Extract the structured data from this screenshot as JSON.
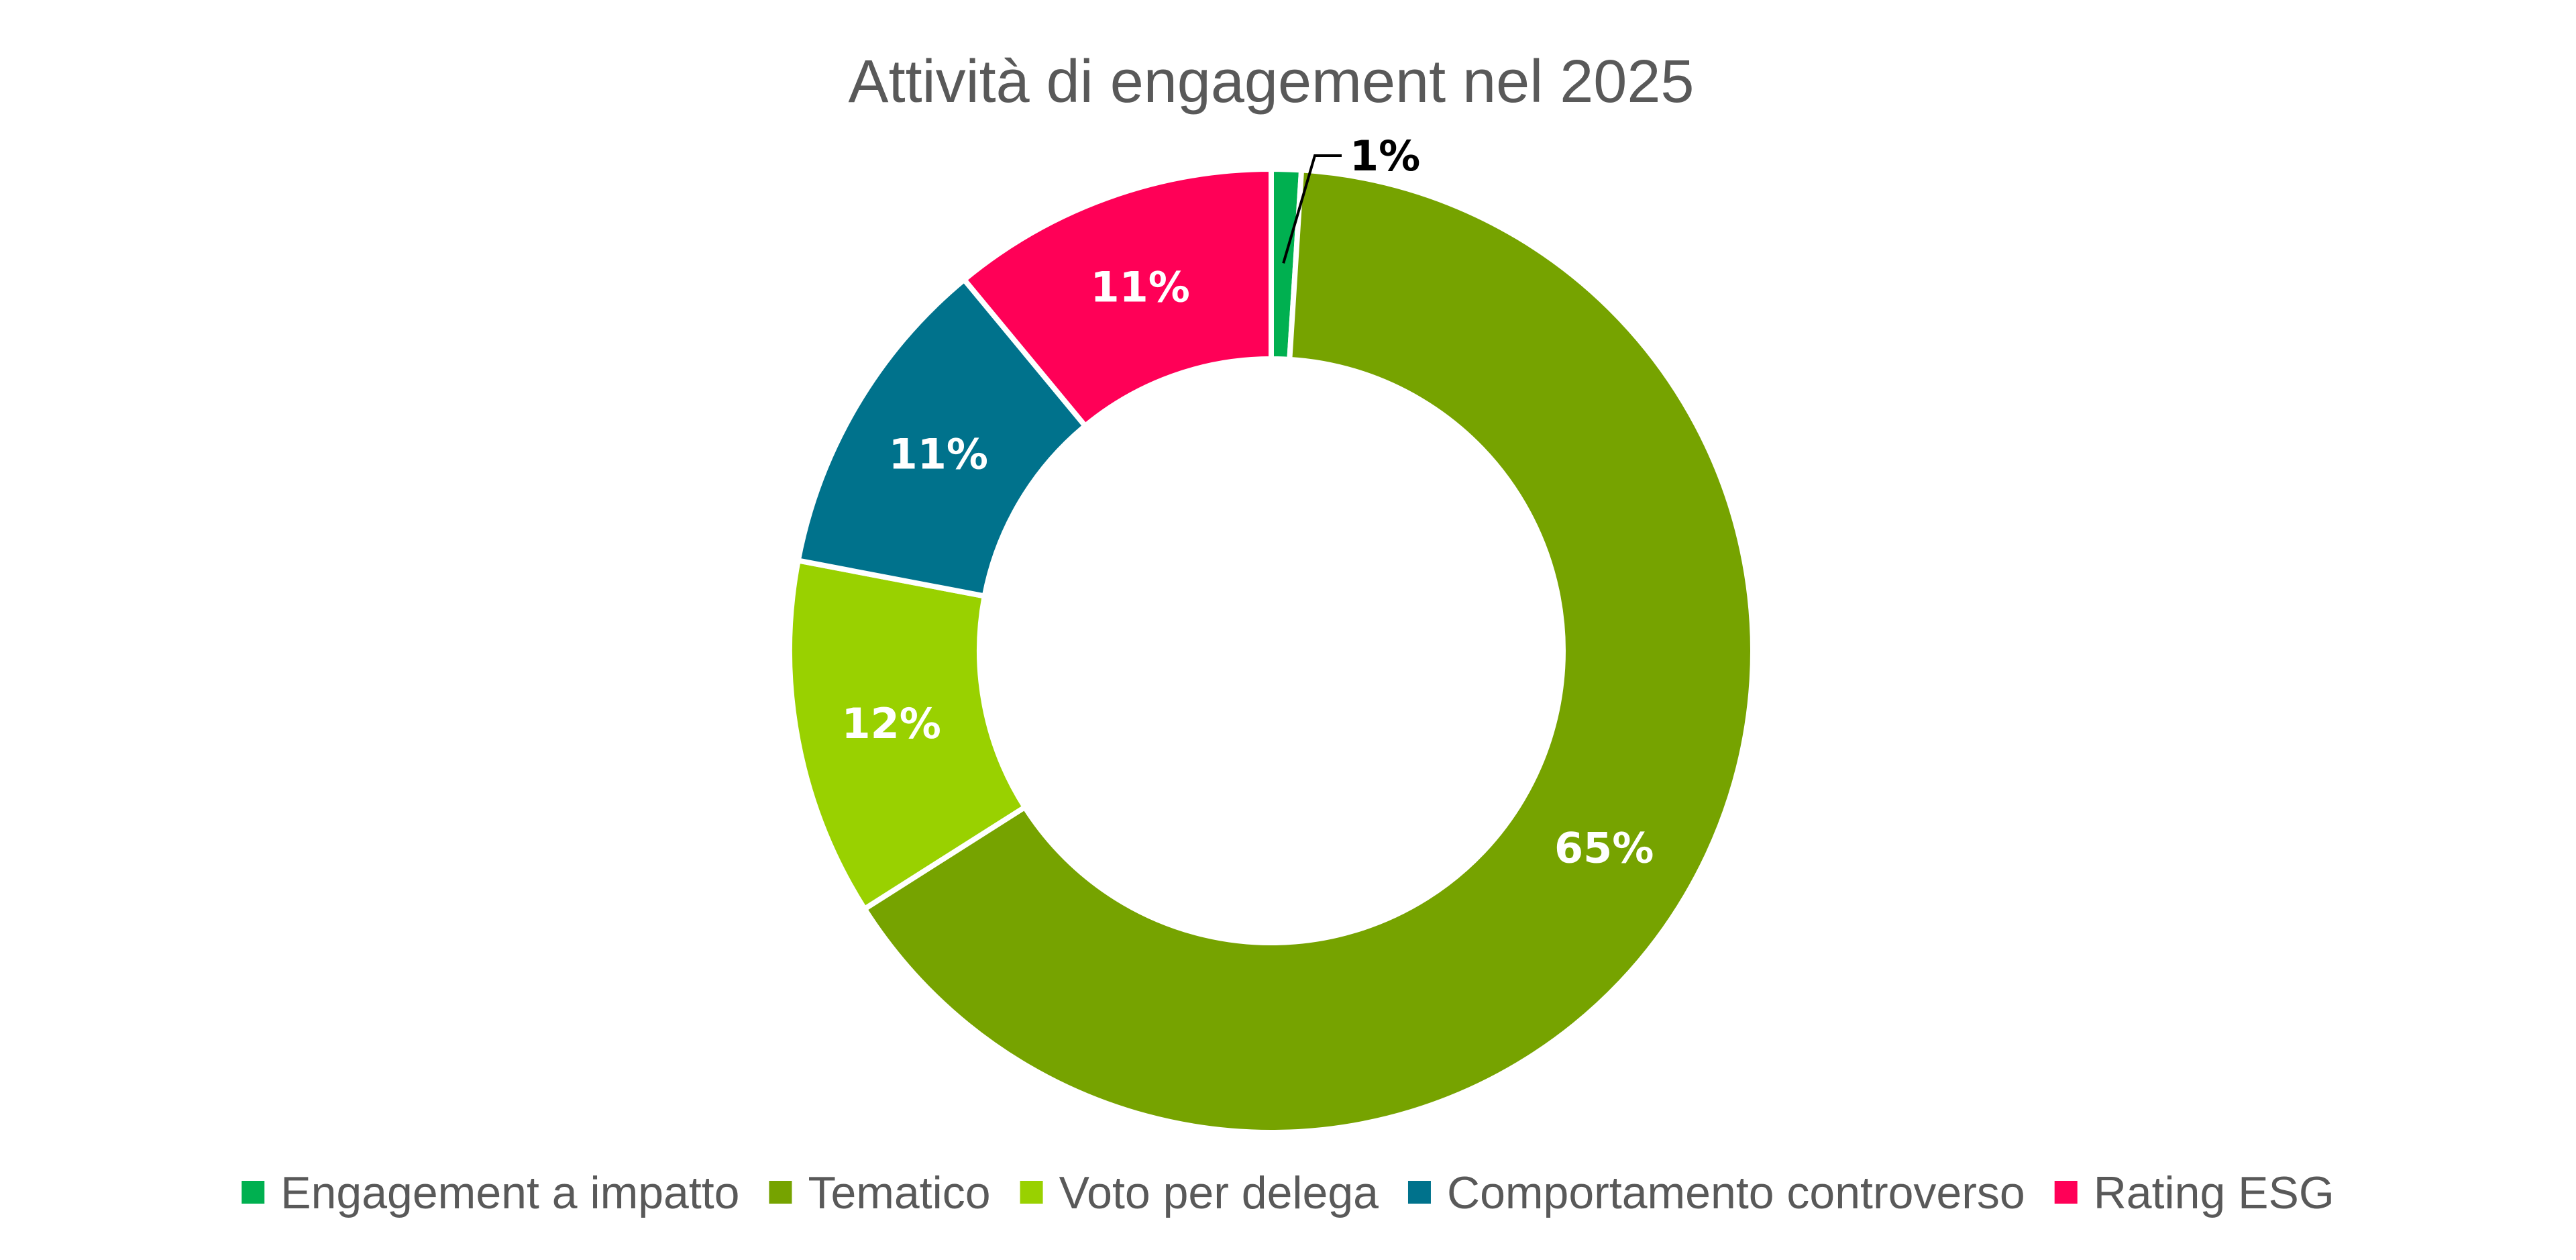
{
  "chart_data": {
    "type": "pie",
    "variant": "donut",
    "title": "Attività di engagement nel 2025",
    "legend_position": "bottom",
    "slices": [
      {
        "name": "Engagement a impatto",
        "value": 1,
        "label": "1%",
        "color": "#00B050",
        "label_color": "#000000",
        "label_outside": true
      },
      {
        "name": "Tematico",
        "value": 65,
        "label": "65%",
        "color": "#76A300",
        "label_color": "#FFFFFF",
        "label_outside": false
      },
      {
        "name": "Voto per delega",
        "value": 12,
        "label": "12%",
        "color": "#99D100",
        "label_color": "#FFFFFF",
        "label_outside": false
      },
      {
        "name": "Comportamento controverso",
        "value": 11,
        "label": "11%",
        "color": "#00728C",
        "label_color": "#FFFFFF",
        "label_outside": false
      },
      {
        "name": "Rating ESG",
        "value": 11,
        "label": "11%",
        "color": "#FF0057",
        "label_color": "#FFFFFF",
        "label_outside": false
      }
    ]
  }
}
